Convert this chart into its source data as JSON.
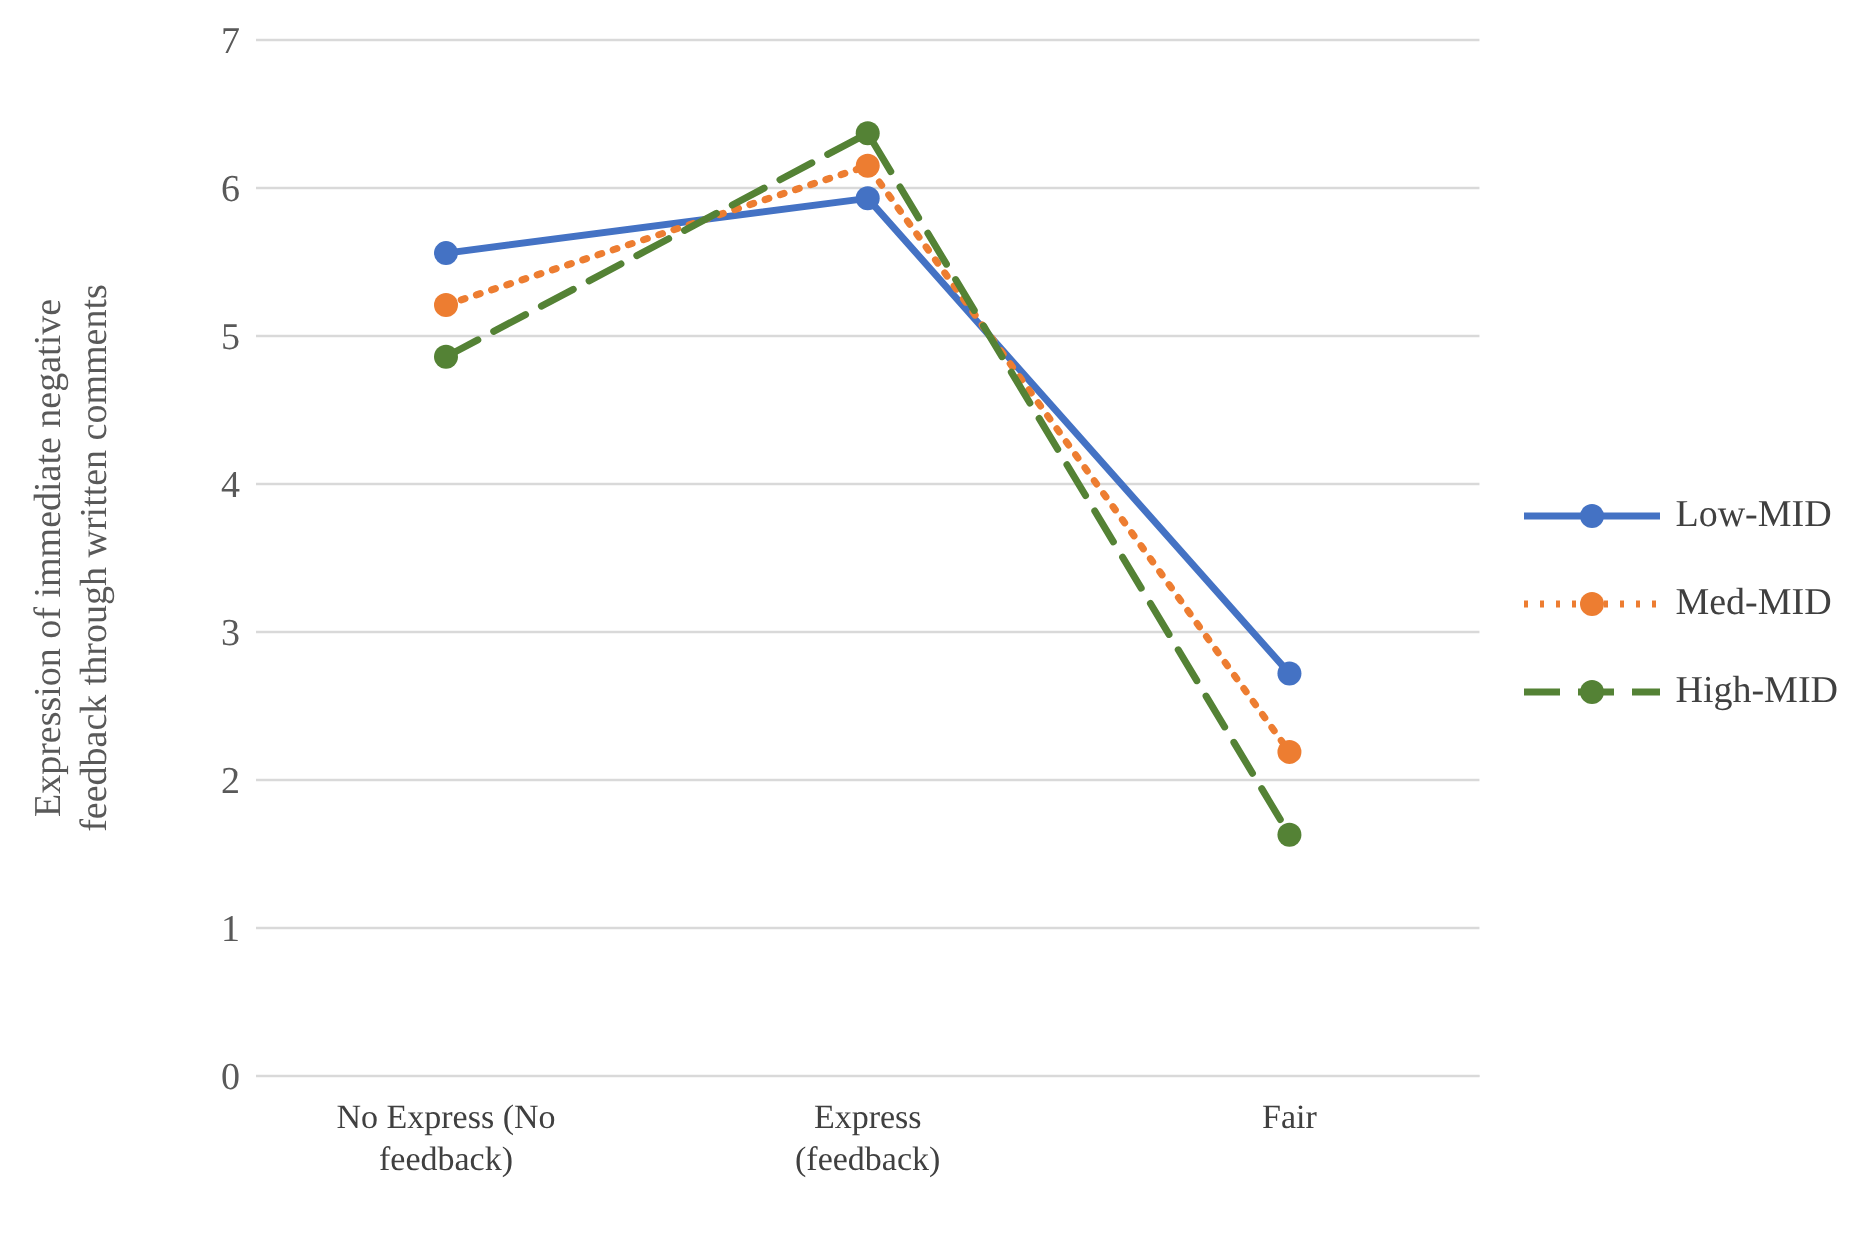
{
  "chart_data": {
    "type": "line",
    "ylabel": "Expression of immediate  negative feedback through written comments",
    "categories": [
      "No Express (No feedback)",
      "Express (feedback)",
      "Fair"
    ],
    "series": [
      {
        "name": "Low-MID",
        "color": "#4472c4",
        "line_style": "solid",
        "values": [
          5.56,
          5.93,
          2.72
        ]
      },
      {
        "name": "Med-MID",
        "color": "#ed7d31",
        "line_style": "dotted",
        "values": [
          5.21,
          6.15,
          2.19
        ]
      },
      {
        "name": "High-MID",
        "color": "#548235",
        "line_style": "dashed",
        "values": [
          4.86,
          6.37,
          1.63
        ]
      }
    ],
    "ylim": [
      0,
      7
    ],
    "yticks": [
      0,
      1,
      2,
      3,
      4,
      5,
      6,
      7
    ],
    "grid": "y",
    "legend": "right",
    "marker": "circle"
  }
}
